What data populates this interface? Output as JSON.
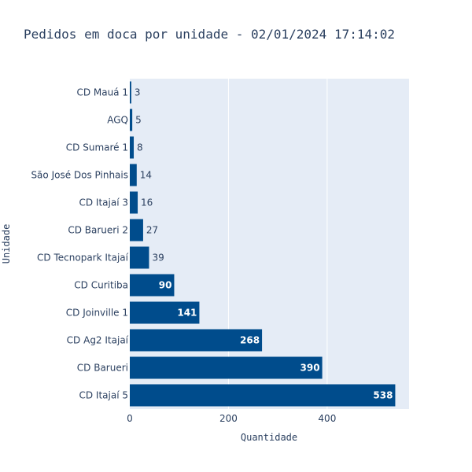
{
  "chart_data": {
    "type": "bar",
    "orientation": "horizontal",
    "title": "Pedidos em doca por unidade - 02/01/2024 17:14:02",
    "xlabel": "Quantidade",
    "ylabel": "Unidade",
    "categories": [
      "CD Mauá 1",
      "AGQ",
      "CD Sumaré 1",
      "São José Dos Pinhais",
      "CD Itajaí 3",
      "CD Barueri 2",
      "CD Tecnopark Itajaí",
      "CD Curitiba",
      "CD Joinville 1",
      "CD Ag2 Itajaí",
      "CD Barueri",
      "CD Itajaí 5"
    ],
    "values": [
      3,
      5,
      8,
      14,
      16,
      27,
      39,
      90,
      141,
      268,
      390,
      538
    ],
    "xlim": [
      0,
      566
    ],
    "xticks": [
      0,
      200,
      400
    ],
    "grid": true,
    "bar_color": "#004c8c",
    "plot_bg": "#e5ecf6"
  }
}
